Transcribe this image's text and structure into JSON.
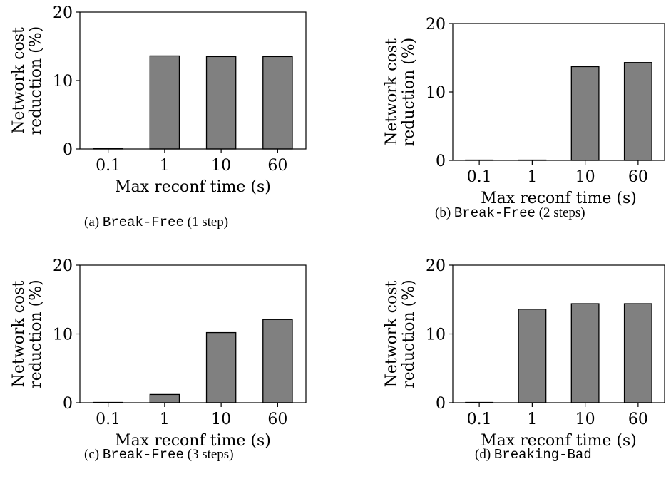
{
  "chart_data": [
    {
      "type": "bar",
      "caption_prefix": "(a) ",
      "caption_name": "Break-Free",
      "caption_suffix": " (1 step)",
      "categories": [
        "0.1",
        "1",
        "10",
        "60"
      ],
      "values": [
        0.05,
        13.6,
        13.5,
        13.5
      ],
      "xlabel": "Max reconf time (s)",
      "ylabel_lines": [
        "Network cost",
        "reduction (%)"
      ],
      "ylim": [
        0,
        20
      ],
      "yticks": [
        0,
        10,
        20
      ],
      "bar_color": "#808080",
      "grid": false
    },
    {
      "type": "bar",
      "caption_prefix": "(b) ",
      "caption_name": "Break-Free",
      "caption_suffix": " (2 steps)",
      "categories": [
        "0.1",
        "1",
        "10",
        "60"
      ],
      "values": [
        0.05,
        0.05,
        13.7,
        14.3
      ],
      "xlabel": "Max reconf time (s)",
      "ylabel_lines": [
        "Network cost",
        "reduction (%)"
      ],
      "ylim": [
        0,
        20
      ],
      "yticks": [
        0,
        10,
        20
      ],
      "bar_color": "#808080",
      "grid": false
    },
    {
      "type": "bar",
      "caption_prefix": "(c) ",
      "caption_name": "Break-Free",
      "caption_suffix": " (3 steps)",
      "categories": [
        "0.1",
        "1",
        "10",
        "60"
      ],
      "values": [
        0.05,
        1.2,
        10.2,
        12.1
      ],
      "xlabel": "Max reconf time (s)",
      "ylabel_lines": [
        "Network cost",
        "reduction (%)"
      ],
      "ylim": [
        0,
        20
      ],
      "yticks": [
        0,
        10,
        20
      ],
      "bar_color": "#808080",
      "grid": false
    },
    {
      "type": "bar",
      "caption_prefix": "(d) ",
      "caption_name": "Breaking-Bad",
      "caption_suffix": "",
      "categories": [
        "0.1",
        "1",
        "10",
        "60"
      ],
      "values": [
        0.05,
        13.6,
        14.4,
        14.4
      ],
      "xlabel": "Max reconf time (s)",
      "ylabel_lines": [
        "Network cost",
        "reduction (%)"
      ],
      "ylim": [
        0,
        20
      ],
      "yticks": [
        0,
        10,
        20
      ],
      "bar_color": "#808080",
      "grid": false
    }
  ]
}
